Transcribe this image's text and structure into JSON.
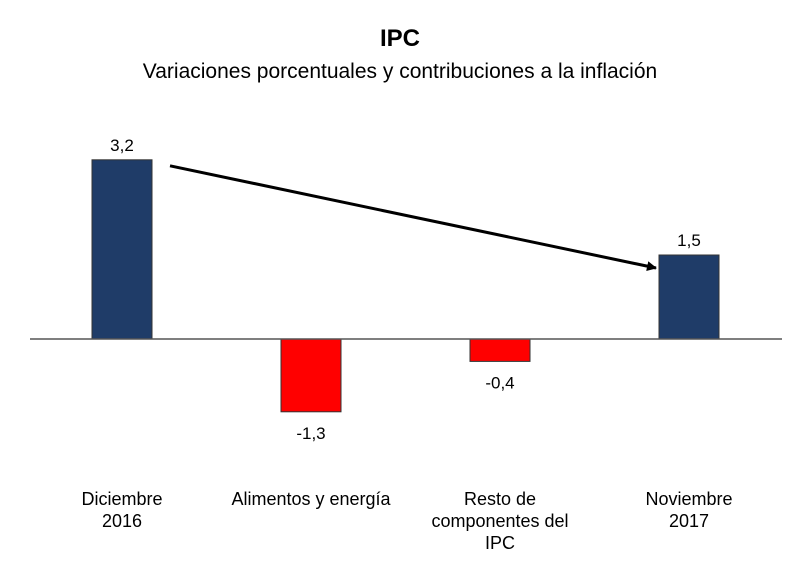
{
  "chart_data": {
    "type": "bar",
    "title": "IPC",
    "subtitle": "Variaciones porcentuales y contribuciones a la inflación",
    "categories": [
      [
        "Diciembre",
        "2016"
      ],
      [
        "Alimentos y energía"
      ],
      [
        "Resto de",
        "componentes del",
        "IPC"
      ],
      [
        "Noviembre",
        "2017"
      ]
    ],
    "values": [
      3.2,
      -1.3,
      -0.4,
      1.5
    ],
    "value_labels": [
      "3,2",
      "-1,3",
      "-0,4",
      "1,5"
    ],
    "bar_colors": [
      "#1f3c68",
      "#ff0000",
      "#ff0000",
      "#1f3c68"
    ],
    "ylim": [
      -2.0,
      3.6
    ],
    "grid": false,
    "legend": "none",
    "annotations": [
      {
        "type": "arrow",
        "from_category": 0,
        "to_category": 3
      }
    ],
    "colors": {
      "positive": "#1f3c68",
      "negative": "#ff0000",
      "axis": "#555555",
      "arrow": "#000000"
    }
  }
}
